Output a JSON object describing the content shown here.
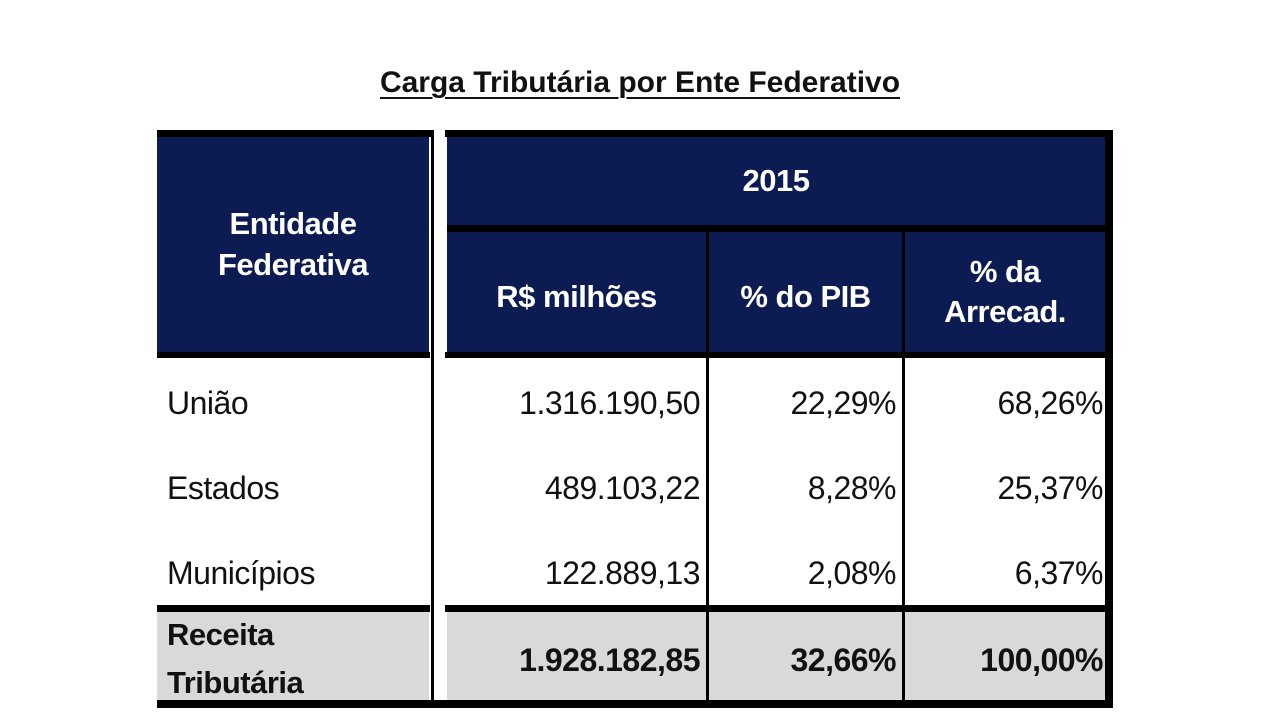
{
  "title": "Carga Tributária por Ente Federativo",
  "header": {
    "entity": "Entidade Federativa",
    "year": "2015",
    "columns": [
      "R$ milhões",
      "% do PIB",
      "% da Arrecad."
    ]
  },
  "rows": [
    {
      "entity": "União",
      "rs": "1.316.190,50",
      "pib": "22,29%",
      "arrec": "68,26%"
    },
    {
      "entity": "Estados",
      "rs": "489.103,22",
      "pib": "8,28%",
      "arrec": "25,37%"
    },
    {
      "entity": "Municípios",
      "rs": "122.889,13",
      "pib": "2,08%",
      "arrec": "6,37%"
    }
  ],
  "total": {
    "entity": "Receita Tributária",
    "rs": "1.928.182,85",
    "pib": "32,66%",
    "arrec": "100,00%"
  }
}
